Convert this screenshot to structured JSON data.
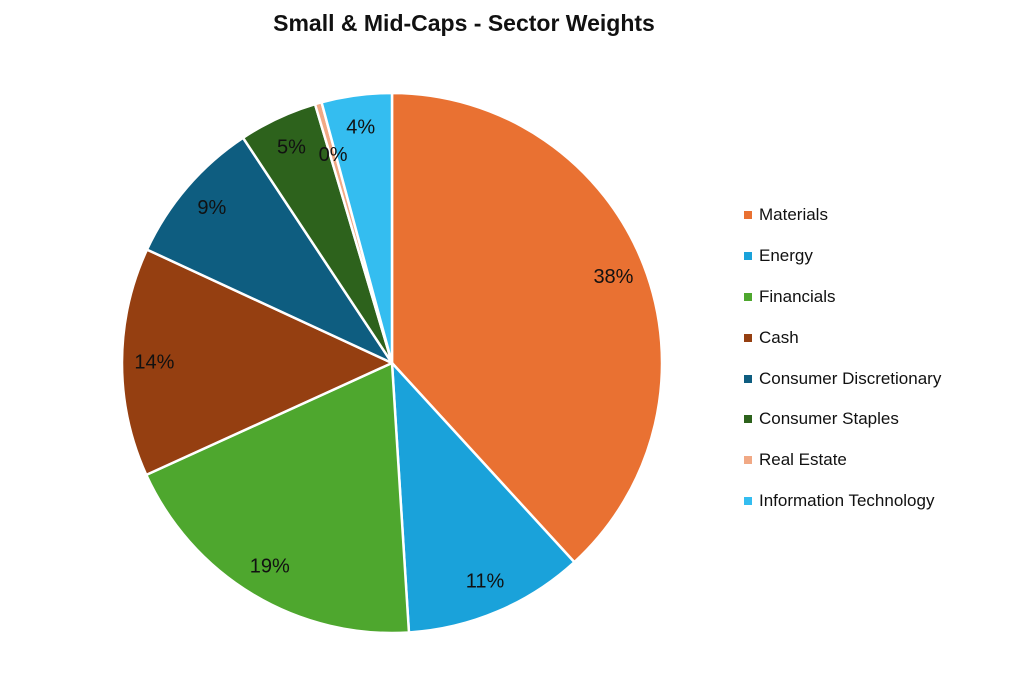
{
  "chart_data": {
    "type": "pie",
    "title": "Small & Mid-Caps - Sector Weights",
    "legend_position": "right",
    "slices": [
      {
        "label": "Materials",
        "value": 38.2,
        "display": "38%",
        "color": "#E97132"
      },
      {
        "label": "Energy",
        "value": 10.8,
        "display": "11%",
        "color": "#1AA2DA"
      },
      {
        "label": "Financials",
        "value": 19.2,
        "display": "19%",
        "color": "#4EA72E"
      },
      {
        "label": "Cash",
        "value": 13.7,
        "display": "14%",
        "color": "#953F11"
      },
      {
        "label": "Consumer Discretionary",
        "value": 8.8,
        "display": "9%",
        "color": "#0E5D80"
      },
      {
        "label": "Consumer Staples",
        "value": 4.7,
        "display": "5%",
        "color": "#2D621C"
      },
      {
        "label": "Real Estate",
        "value": 0.4,
        "display": "0%",
        "color": "#F1A985"
      },
      {
        "label": "Information Technology",
        "value": 4.2,
        "display": "4%",
        "color": "#34BDF0"
      }
    ]
  }
}
